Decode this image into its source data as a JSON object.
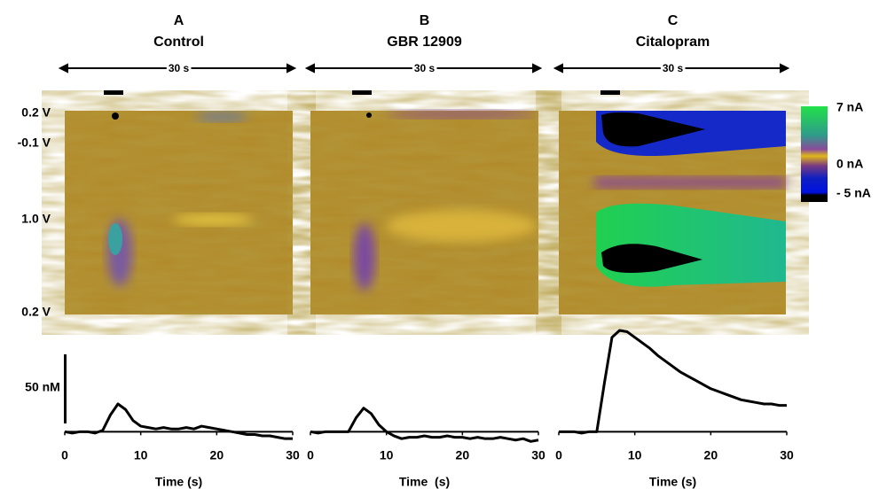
{
  "voltage_axis": [
    "0.2 V",
    "-0.1 V",
    "1.0 V",
    "0.2 V"
  ],
  "colorbar": [
    "7 nA",
    "0 nA",
    "- 5 nA"
  ],
  "scale_bar": "50 nM",
  "chart_data": [
    {
      "type": "line",
      "panel": "A",
      "title": "Control",
      "duration": "30 s",
      "x_label": "Time (s)",
      "x": [
        0,
        1,
        2,
        3,
        4,
        5,
        6,
        7,
        8,
        9,
        10,
        11,
        12,
        13,
        14,
        15,
        16,
        17,
        18,
        19,
        20,
        21,
        22,
        23,
        24,
        25,
        26,
        27,
        28,
        29,
        30
      ],
      "series": [
        {
          "color": "#000000",
          "values": [
            0,
            -1,
            0,
            0,
            -1,
            1,
            12,
            20,
            16,
            8,
            4,
            3,
            2,
            3,
            2,
            2,
            3,
            2,
            4,
            3,
            2,
            1,
            0,
            -1,
            -2,
            -2,
            -3,
            -3,
            -4,
            -5,
            -5
          ]
        }
      ],
      "xlim": [
        0,
        30
      ],
      "xticks": [
        0,
        10,
        20,
        30
      ],
      "ylim": [
        -10,
        80
      ]
    },
    {
      "type": "line",
      "panel": "B",
      "title": "GBR 12909",
      "duration": "30 s",
      "x_label": "Time  (s)",
      "x": [
        0,
        1,
        2,
        3,
        4,
        5,
        6,
        7,
        8,
        9,
        10,
        11,
        12,
        13,
        14,
        15,
        16,
        17,
        18,
        19,
        20,
        21,
        22,
        23,
        24,
        25,
        26,
        27,
        28,
        29,
        30
      ],
      "series": [
        {
          "color": "#000000",
          "values": [
            0,
            -1,
            0,
            0,
            0,
            0,
            10,
            17,
            13,
            5,
            0,
            -3,
            -5,
            -4,
            -4,
            -3,
            -4,
            -4,
            -3,
            -4,
            -4,
            -5,
            -4,
            -5,
            -5,
            -4,
            -5,
            -6,
            -5,
            -7,
            -6
          ]
        }
      ],
      "xlim": [
        0,
        30
      ],
      "xticks": [
        0,
        10,
        20,
        30
      ],
      "ylim": [
        -10,
        80
      ]
    },
    {
      "type": "line",
      "panel": "C",
      "title": "Citalopram",
      "duration": "30 s",
      "x_label": "Time (s)",
      "x": [
        0,
        1,
        2,
        3,
        4,
        5,
        6,
        7,
        8,
        9,
        10,
        11,
        12,
        13,
        14,
        15,
        16,
        17,
        18,
        19,
        20,
        21,
        22,
        23,
        24,
        25,
        26,
        27,
        28,
        29,
        30
      ],
      "series": [
        {
          "color": "#000000",
          "values": [
            0,
            0,
            0,
            -1,
            0,
            0,
            35,
            68,
            73,
            72,
            68,
            64,
            60,
            55,
            51,
            47,
            43,
            40,
            37,
            34,
            31,
            29,
            27,
            25,
            23,
            22,
            21,
            20,
            20,
            19,
            19
          ]
        }
      ],
      "xlim": [
        0,
        30
      ],
      "xticks": [
        0,
        10,
        20,
        30
      ],
      "ylim": [
        -10,
        80
      ]
    }
  ]
}
